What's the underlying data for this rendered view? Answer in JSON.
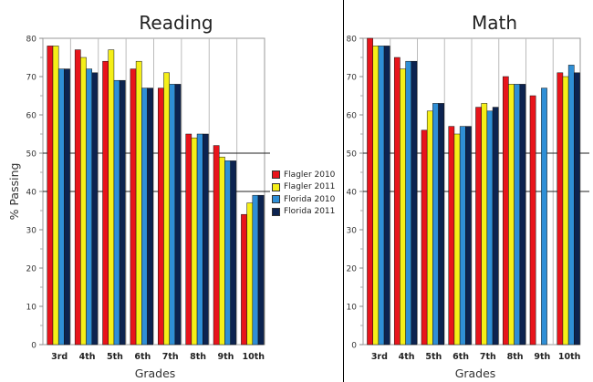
{
  "chart_data": [
    {
      "type": "bar",
      "title": "Reading",
      "xlabel": "Grades",
      "ylabel": "% Passing",
      "ylim": [
        0,
        80
      ],
      "yticks": [
        0,
        10,
        20,
        30,
        40,
        50,
        60,
        70,
        80
      ],
      "categories": [
        "3rd",
        "4th",
        "5th",
        "6th",
        "7th",
        "8th",
        "9th",
        "10th"
      ],
      "series": [
        {
          "name": "Flagler 2010",
          "color": "#e8141b",
          "values": [
            78,
            77,
            74,
            72,
            67,
            55,
            52,
            34
          ]
        },
        {
          "name": "Flagler 2011",
          "color": "#f5ef18",
          "values": [
            78,
            75,
            77,
            74,
            71,
            54,
            49,
            37
          ]
        },
        {
          "name": "Florida 2010",
          "color": "#2f8fd6",
          "values": [
            72,
            72,
            69,
            67,
            68,
            55,
            48,
            39
          ]
        },
        {
          "name": "Florida 2011",
          "color": "#0c2350",
          "values": [
            72,
            71,
            69,
            67,
            68,
            55,
            48,
            39
          ]
        }
      ],
      "grid": "horizontal",
      "legend_position": "right"
    },
    {
      "type": "bar",
      "title": "Math",
      "xlabel": "Grades",
      "ylabel": "",
      "ylim": [
        0,
        80
      ],
      "yticks": [
        0,
        10,
        20,
        30,
        40,
        50,
        60,
        70,
        80
      ],
      "categories": [
        "3rd",
        "4th",
        "5th",
        "6th",
        "7th",
        "8th",
        "9th",
        "10th"
      ],
      "series": [
        {
          "name": "Flagler 2010",
          "color": "#e8141b",
          "values": [
            80,
            75,
            56,
            57,
            62,
            70,
            65,
            71
          ]
        },
        {
          "name": "Flagler 2011",
          "color": "#f5ef18",
          "values": [
            78,
            72,
            61,
            55,
            63,
            68,
            null,
            70
          ]
        },
        {
          "name": "Florida 2010",
          "color": "#2f8fd6",
          "values": [
            78,
            74,
            63,
            57,
            61,
            68,
            67,
            73
          ]
        },
        {
          "name": "Florida 2011",
          "color": "#0c2350",
          "values": [
            78,
            74,
            63,
            57,
            62,
            68,
            null,
            71
          ]
        }
      ],
      "grid": "horizontal"
    }
  ]
}
